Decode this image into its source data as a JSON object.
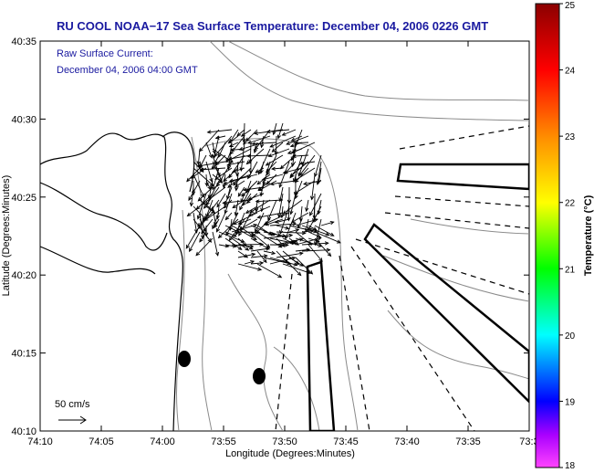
{
  "title": "RU COOL  NOAA−17  Sea Surface Temperature:  December 04, 2006 0226 GMT",
  "annotation": {
    "line1": "Raw Surface Current:",
    "line2": "December 04, 2006 04:00 GMT"
  },
  "scale": {
    "label": "50 cm/s"
  },
  "axes": {
    "xlabel": "Longitude (Degrees:Minutes)",
    "ylabel": "Latitude (Degrees:Minutes)",
    "xticks": [
      "74:10",
      "74:05",
      "74:00",
      "73:55",
      "73:50",
      "73:45",
      "73:40",
      "73:35",
      "73:3"
    ],
    "yticks": [
      "40:35",
      "40:30",
      "40:25",
      "40:20",
      "40:15",
      "40:10"
    ]
  },
  "colorbar": {
    "title": "Temperature (°C)",
    "ticks": [
      "25",
      "24",
      "23",
      "22",
      "21",
      "20",
      "19",
      "18"
    ],
    "colors": [
      "#8b0000",
      "#ff0000",
      "#ff8c00",
      "#ffff00",
      "#00ff00",
      "#00ffff",
      "#0000ff",
      "#ff00ff"
    ]
  },
  "chart_data": {
    "type": "map",
    "xlim": [
      "74:10",
      "73:30"
    ],
    "ylim": [
      "40:10",
      "40:35"
    ],
    "color_range": [
      18,
      25
    ],
    "sst_pixels": "none shown (cloud / no data)",
    "features": [
      "coastline",
      "bathymetry contours",
      "surface current vectors",
      "shipping lanes",
      "spoil disposal areas"
    ]
  }
}
